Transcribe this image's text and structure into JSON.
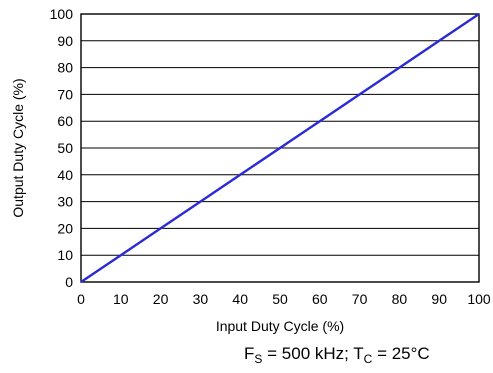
{
  "chart_data": {
    "type": "line",
    "title": "",
    "xlabel": "Input Duty Cycle (%)",
    "ylabel": "Output Duty Cycle (%)",
    "xlim": [
      0,
      100
    ],
    "ylim": [
      0,
      100
    ],
    "xticks": [
      "0",
      "10",
      "20",
      "30",
      "40",
      "50",
      "60",
      "70",
      "80",
      "90",
      "100"
    ],
    "yticks": [
      "0",
      "10",
      "20",
      "30",
      "40",
      "50",
      "60",
      "70",
      "80",
      "90",
      "100"
    ],
    "grid": "horizontal",
    "series": [
      {
        "x": [
          0,
          10,
          20,
          30,
          40,
          50,
          60,
          70,
          80,
          90,
          100
        ],
        "y": [
          0,
          10,
          20,
          30,
          40,
          50,
          60,
          70,
          80,
          90,
          100
        ],
        "color": "#2b2bd6"
      }
    ]
  },
  "conditions": {
    "f_main": "F",
    "f_sub": "S",
    "f_value": " = 500 kHz; T",
    "t_sub": "C",
    "t_value": " = 25°C"
  }
}
